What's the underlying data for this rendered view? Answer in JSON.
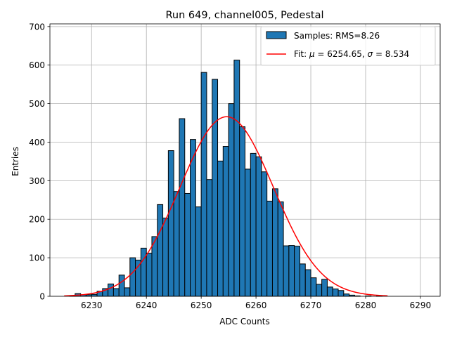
{
  "chart_data": {
    "type": "bar",
    "title": "Run 649, channel005, Pedestal",
    "xlabel": "ADC Counts",
    "ylabel": "Entries",
    "xlim": [
      6222.4,
      6293.6
    ],
    "ylim": [
      0,
      707
    ],
    "xticks": [
      6230,
      6240,
      6250,
      6260,
      6270,
      6280,
      6290
    ],
    "yticks": [
      0,
      100,
      200,
      300,
      400,
      500,
      600,
      700
    ],
    "grid": true,
    "legend_position": "top-right",
    "bin_width": 1,
    "series": [
      {
        "name": "Samples: RMS=8.26",
        "kind": "histogram",
        "color": "#1f77b4",
        "bin_start": [
          6226,
          6227,
          6228,
          6229,
          6230,
          6231,
          6232,
          6233,
          6234,
          6235,
          6236,
          6237,
          6238,
          6239,
          6240,
          6241,
          6242,
          6243,
          6244,
          6245,
          6246,
          6247,
          6248,
          6249,
          6250,
          6251,
          6252,
          6253,
          6254,
          6255,
          6256,
          6257,
          6258,
          6259,
          6260,
          6261,
          6262,
          6263,
          6264,
          6265,
          6266,
          6267,
          6268,
          6269,
          6270,
          6271,
          6272,
          6273,
          6274,
          6275,
          6276,
          6277,
          6278,
          6279,
          6280,
          6281,
          6282
        ],
        "values": [
          2,
          7,
          4,
          4,
          5,
          13,
          20,
          32,
          20,
          55,
          22,
          100,
          94,
          125,
          112,
          155,
          238,
          203,
          378,
          272,
          461,
          267,
          407,
          232,
          581,
          303,
          563,
          351,
          389,
          500,
          613,
          440,
          330,
          371,
          362,
          323,
          247,
          279,
          245,
          131,
          132,
          130,
          84,
          69,
          48,
          31,
          44,
          24,
          19,
          15,
          6,
          3,
          1,
          0,
          1,
          0,
          1
        ]
      },
      {
        "name": "Fit: μ = 6254.65, σ = 8.534",
        "kind": "gaussian-fit",
        "color": "#ff0000",
        "mu": 6254.65,
        "sigma": 8.534,
        "amplitude": 466,
        "x_range": [
          6225,
          6284
        ]
      }
    ],
    "legend": {
      "histogram_prefix": "Samples: RMS=8.26",
      "fit_prefix": "Fit: ",
      "mu_symbol": "μ",
      "mu_text": " = 6254.65, ",
      "sigma_symbol": "σ",
      "sigma_text": " = 8.534"
    }
  }
}
